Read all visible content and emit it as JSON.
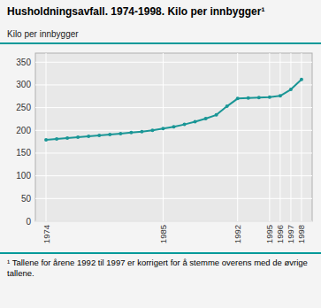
{
  "chart_data": {
    "type": "line",
    "title": "Husholdningsavfall. 1974-1998. Kilo per innbygger¹",
    "y_label": "Kilo per innbygger",
    "footnote": "¹ Tallene for årene 1992 til 1997 er korrigert for å stemme overens med de øvrige tallene.",
    "x": [
      1974,
      1975,
      1976,
      1977,
      1978,
      1979,
      1980,
      1981,
      1982,
      1983,
      1984,
      1985,
      1986,
      1987,
      1988,
      1989,
      1990,
      1991,
      1992,
      1993,
      1994,
      1995,
      1996,
      1997,
      1998
    ],
    "y": [
      179,
      181,
      183,
      185,
      187,
      189,
      191,
      193,
      195,
      197,
      200,
      204,
      208,
      213,
      219,
      226,
      234,
      253,
      270,
      271,
      272,
      273,
      276,
      290,
      312
    ],
    "color": "#1a9696",
    "marker": "circle",
    "xlim": [
      1973,
      1999
    ],
    "xticks": [
      1974,
      1985,
      1992,
      1995,
      1996,
      1997,
      1998
    ],
    "ylim": [
      0,
      370
    ],
    "yticks": [
      0,
      50,
      100,
      150,
      200,
      250,
      300,
      350
    ],
    "grid": true
  }
}
